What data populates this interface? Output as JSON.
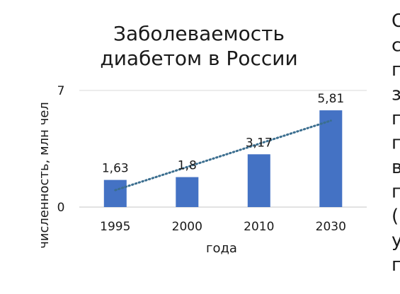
{
  "chart_data": {
    "type": "bar",
    "title_lines": [
      "Заболеваемость",
      "диабетом в России"
    ],
    "categories": [
      "1995",
      "2000",
      "2010",
      "2030"
    ],
    "values": [
      1.63,
      1.8,
      3.17,
      5.81
    ],
    "data_labels": [
      "1,63",
      "1,8",
      "3,17",
      "5,81"
    ],
    "xlabel": "года",
    "ylabel": "численность, млн чел",
    "ylim": [
      0,
      7
    ],
    "y_tick_labels": [
      "0",
      "7"
    ],
    "trendline": {
      "type": "linear",
      "style": "dotted"
    },
    "grid": false,
    "legend": "none",
    "colors": {
      "bar": "#4472C4",
      "trendline": "#3B6E8F",
      "axis": "#d9d9d9",
      "text": "#1a1a1a"
    }
  },
  "side_text_fragment": [
    "О",
    "с",
    "п",
    "з",
    "п",
    "п",
    "в",
    "п",
    "(",
    "у",
    "п"
  ]
}
